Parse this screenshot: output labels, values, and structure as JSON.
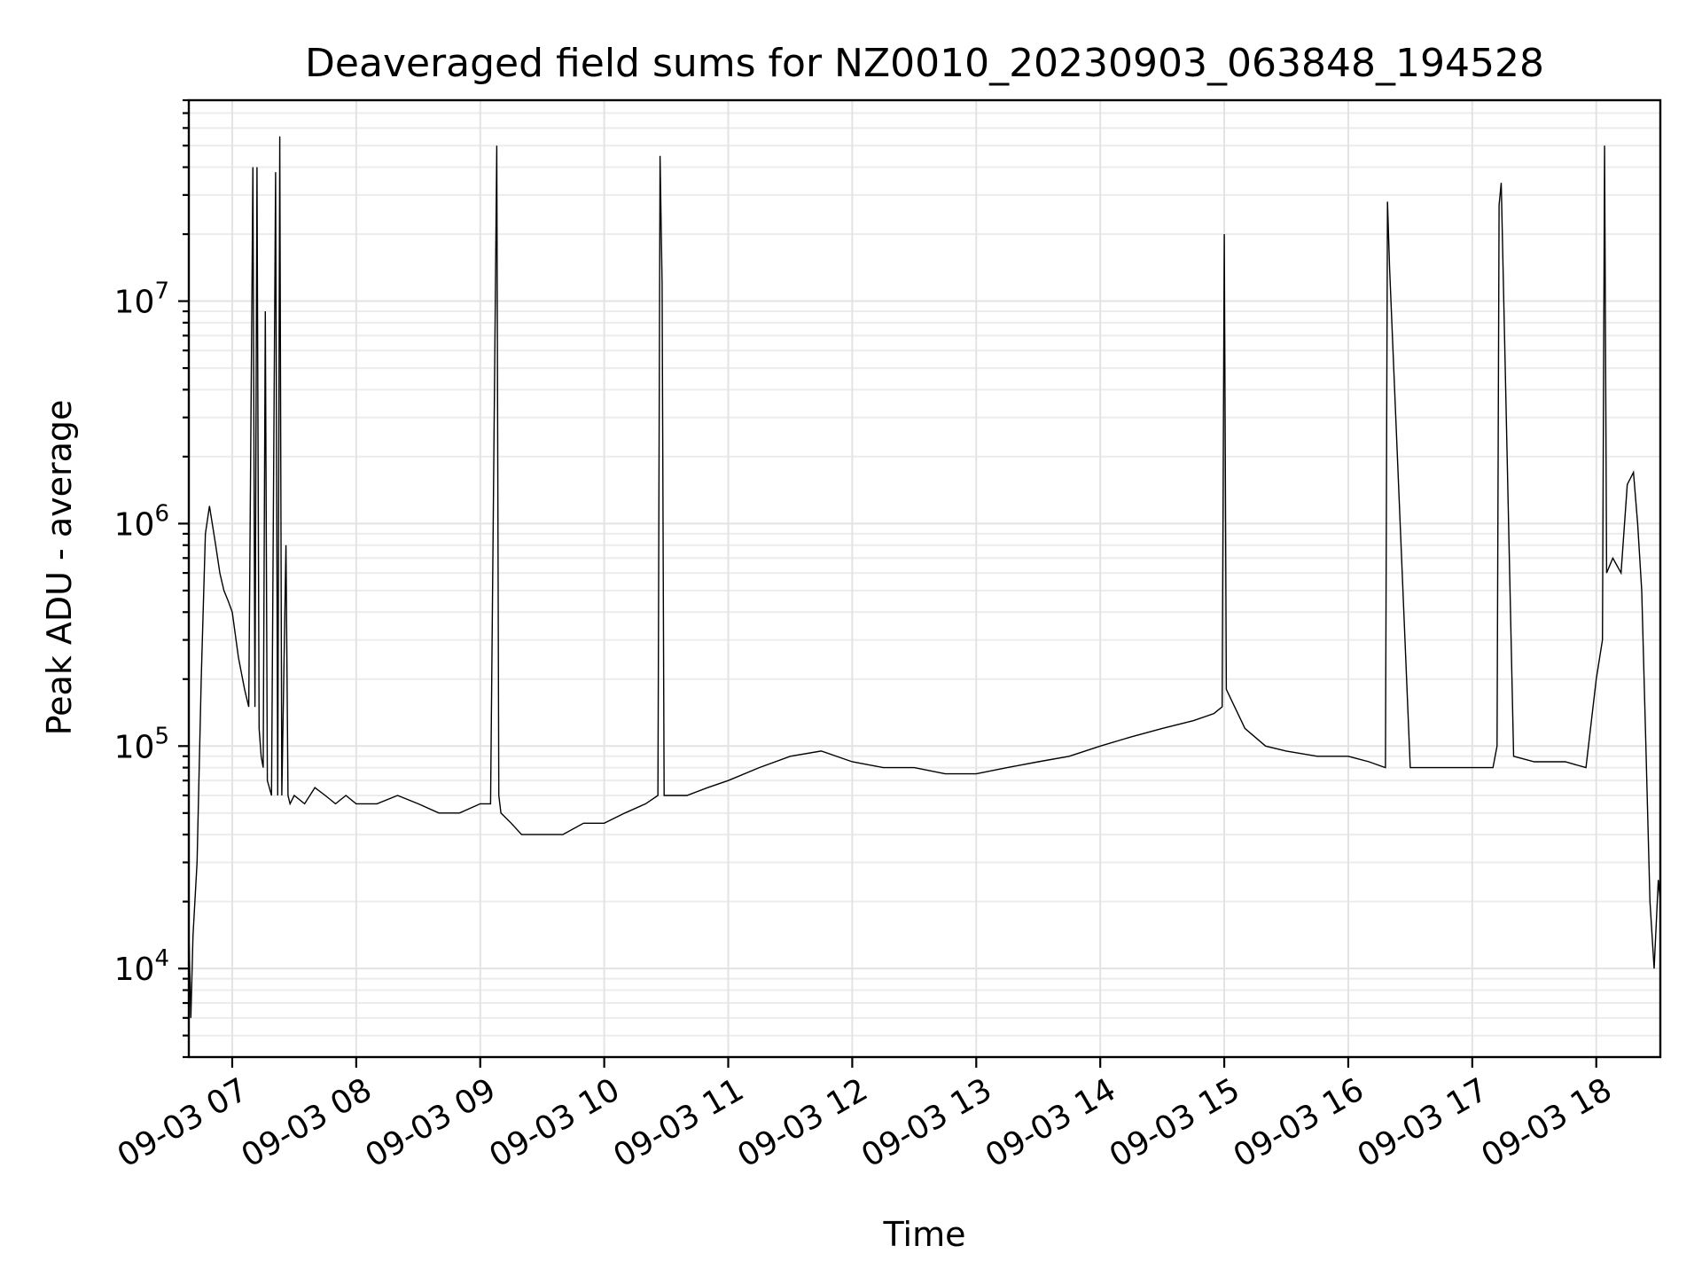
{
  "chart_data": {
    "type": "line",
    "title": "Deaveraged field sums for NZ0010_20230903_063848_194528",
    "xlabel": "Time",
    "ylabel": "Peak ADU - average",
    "y_scale": "log",
    "ylim": [
      4000,
      80000000
    ],
    "xlim": [
      "2023-09-03 06:39",
      "2023-09-03 18:31"
    ],
    "x_ticks": [
      {
        "t": "2023-09-03 07:00",
        "label": "09-03 07"
      },
      {
        "t": "2023-09-03 08:00",
        "label": "09-03 08"
      },
      {
        "t": "2023-09-03 09:00",
        "label": "09-03 09"
      },
      {
        "t": "2023-09-03 10:00",
        "label": "09-03 10"
      },
      {
        "t": "2023-09-03 11:00",
        "label": "09-03 11"
      },
      {
        "t": "2023-09-03 12:00",
        "label": "09-03 12"
      },
      {
        "t": "2023-09-03 13:00",
        "label": "09-03 13"
      },
      {
        "t": "2023-09-03 14:00",
        "label": "09-03 14"
      },
      {
        "t": "2023-09-03 15:00",
        "label": "09-03 15"
      },
      {
        "t": "2023-09-03 16:00",
        "label": "09-03 16"
      },
      {
        "t": "2023-09-03 17:00",
        "label": "09-03 17"
      },
      {
        "t": "2023-09-03 18:00",
        "label": "09-03 18"
      }
    ],
    "y_ticks": [
      {
        "value": 10000,
        "base": "10",
        "exp": "4"
      },
      {
        "value": 100000,
        "base": "10",
        "exp": "5"
      },
      {
        "value": 1000000,
        "base": "10",
        "exp": "6"
      },
      {
        "value": 10000000,
        "base": "10",
        "exp": "7"
      }
    ],
    "grid": true,
    "series": [
      {
        "color": "#000000",
        "x": [
          "06:39",
          "06:40",
          "06:41",
          "06:43",
          "06:45",
          "06:47",
          "06:49",
          "06:52",
          "06:54",
          "06:56",
          "06:58",
          "07:00",
          "07:03",
          "07:06",
          "07:08",
          "07:10",
          "07:11",
          "07:12",
          "07:13",
          "07:14",
          "07:15",
          "07:16",
          "07:17",
          "07:19",
          "07:21",
          "07:22",
          "07:23",
          "07:24",
          "07:26",
          "07:27",
          "07:28",
          "07:30",
          "07:35",
          "07:40",
          "07:45",
          "07:50",
          "07:55",
          "08:00",
          "08:10",
          "08:20",
          "08:30",
          "08:40",
          "08:50",
          "09:00",
          "09:05",
          "09:08",
          "09:09",
          "09:10",
          "09:15",
          "09:20",
          "09:30",
          "09:40",
          "09:50",
          "10:00",
          "10:10",
          "10:20",
          "10:26",
          "10:27",
          "10:28",
          "10:29",
          "10:30",
          "10:40",
          "10:50",
          "11:00",
          "11:15",
          "11:30",
          "11:45",
          "12:00",
          "12:15",
          "12:30",
          "12:45",
          "13:00",
          "13:15",
          "13:30",
          "13:45",
          "14:00",
          "14:15",
          "14:30",
          "14:45",
          "14:55",
          "14:59",
          "15:00",
          "15:01",
          "15:10",
          "15:20",
          "15:30",
          "15:45",
          "16:00",
          "16:10",
          "16:18",
          "16:19",
          "16:20",
          "16:30",
          "16:45",
          "17:00",
          "17:10",
          "17:12",
          "17:13",
          "17:14",
          "17:20",
          "17:30",
          "17:45",
          "17:55",
          "18:00",
          "18:03",
          "18:04",
          "18:05",
          "18:08",
          "18:12",
          "18:15",
          "18:18",
          "18:20",
          "18:22",
          "18:24",
          "18:26",
          "18:28",
          "18:30",
          "18:31"
        ],
        "y": [
          15000,
          6000,
          14000,
          30000,
          200000,
          900000,
          1200000,
          800000,
          600000,
          500000,
          450000,
          400000,
          250000,
          180000,
          150000,
          40000000,
          150000,
          40000000,
          120000,
          90000,
          80000,
          9000000,
          70000,
          60000,
          38000000,
          60000,
          55000000,
          60000,
          800000,
          60000,
          55000,
          60000,
          55000,
          65000,
          60000,
          55000,
          60000,
          55000,
          55000,
          60000,
          55000,
          50000,
          50000,
          55000,
          55000,
          50000000,
          60000,
          50000,
          45000,
          40000,
          40000,
          40000,
          45000,
          45000,
          50000,
          55000,
          60000,
          45000000,
          12000000,
          60000,
          60000,
          60000,
          65000,
          70000,
          80000,
          90000,
          95000,
          85000,
          80000,
          80000,
          75000,
          75000,
          80000,
          85000,
          90000,
          100000,
          110000,
          120000,
          130000,
          140000,
          150000,
          20000000,
          180000,
          120000,
          100000,
          95000,
          90000,
          90000,
          85000,
          80000,
          28000000,
          14000000,
          80000,
          80000,
          80000,
          80000,
          100000,
          27000000,
          34000000,
          90000,
          85000,
          85000,
          80000,
          200000,
          300000,
          50000000,
          600000,
          700000,
          600000,
          1500000,
          1700000,
          1000000,
          500000,
          100000,
          20000,
          10000,
          25000,
          20000
        ]
      }
    ]
  }
}
